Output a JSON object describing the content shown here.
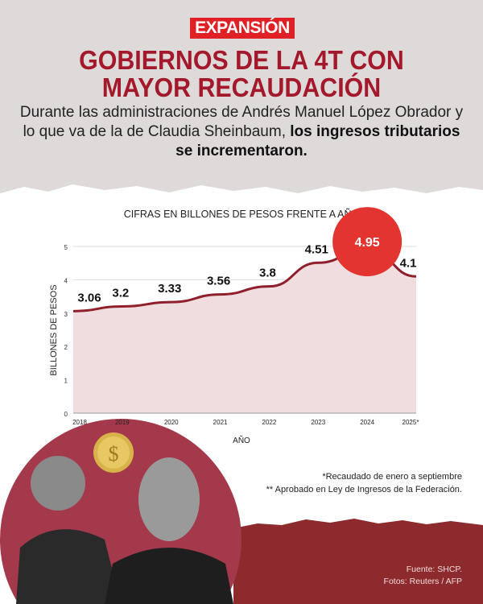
{
  "brand": "EXPANSIÓN",
  "title_line1": "GOBIERNOS DE LA 4T CON",
  "title_line2": "MAYOR RECAUDACIÓN",
  "subtitle_plain": "Durante las administraciones de Andrés Manuel López Obrador y lo que va de la de Claudia Sheinbaum, ",
  "subtitle_bold": "los ingresos tributarios se incrementaron.",
  "notes": [
    "*Recaudado de enero a septiembre",
    "** Aprobado en Ley de Ingresos de la Federación."
  ],
  "source": "Fuente: SHCP.",
  "photos": "Fotos: Reuters / AFP",
  "colors": {
    "title": "#a3182b",
    "line": "#8f1f2a",
    "fill": "#f0dde0",
    "highlight": "#e3342f",
    "bottom": "#8c2a2e"
  },
  "chart_data": {
    "type": "area",
    "title": "CIFRAS EN BILLONES DE PESOS FRENTE A AÑO",
    "xlabel": "AÑO",
    "ylabel": "BILLONES DE PESOS",
    "categories": [
      "2018",
      "2019",
      "2020",
      "2021",
      "2022",
      "2023",
      "2024",
      "2025*"
    ],
    "values": [
      3.06,
      3.2,
      3.33,
      3.56,
      3.8,
      4.51,
      4.95,
      4.1
    ],
    "data_labels": [
      "3.06",
      "3.2",
      "3.33",
      "3.56",
      "3.8",
      "4.51",
      "4.95",
      "4.1"
    ],
    "highlight": "2024",
    "ylim": [
      0,
      5
    ],
    "yticks": [
      0,
      1,
      2,
      3,
      4,
      5
    ],
    "grid": true
  }
}
